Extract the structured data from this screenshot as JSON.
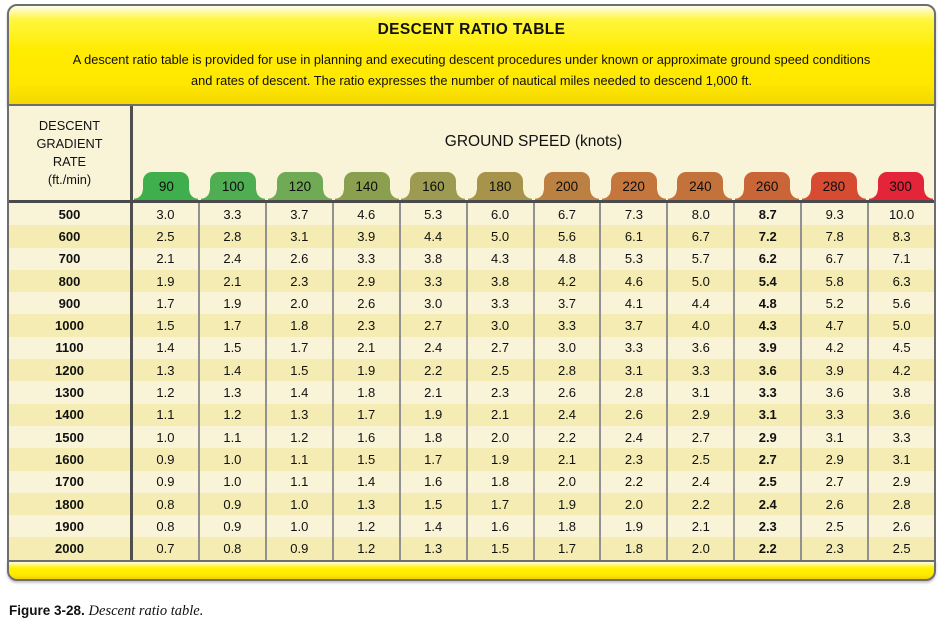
{
  "figure": {
    "header": {
      "title": "DESCENT RATIO TABLE",
      "description": "A descent ratio table is provided for use in planning and executing descent procedures under known or approximate ground speed conditions and rates of descent. The ratio expresses the number of nautical miles needed to descend 1,000 ft."
    },
    "table": {
      "row_header": "DESCENT\nGRADIENT\nRATE\n(ft./min)",
      "col_group_header": "GROUND SPEED (knots)",
      "highlight_speed": "260",
      "speeds": [
        {
          "label": "90",
          "color": "#3fae4c"
        },
        {
          "label": "100",
          "color": "#4fae52"
        },
        {
          "label": "120",
          "color": "#71aa55"
        },
        {
          "label": "140",
          "color": "#8aa04f"
        },
        {
          "label": "160",
          "color": "#9c9b51"
        },
        {
          "label": "180",
          "color": "#a7944a"
        },
        {
          "label": "200",
          "color": "#bb8042"
        },
        {
          "label": "220",
          "color": "#c4763d"
        },
        {
          "label": "240",
          "color": "#c4723c"
        },
        {
          "label": "260",
          "color": "#ca6537"
        },
        {
          "label": "280",
          "color": "#d84b33"
        },
        {
          "label": "300",
          "color": "#e42438"
        }
      ],
      "rows": [
        {
          "rate": "500",
          "values": [
            "3.0",
            "3.3",
            "3.7",
            "4.6",
            "5.3",
            "6.0",
            "6.7",
            "7.3",
            "8.0",
            "8.7",
            "9.3",
            "10.0"
          ]
        },
        {
          "rate": "600",
          "values": [
            "2.5",
            "2.8",
            "3.1",
            "3.9",
            "4.4",
            "5.0",
            "5.6",
            "6.1",
            "6.7",
            "7.2",
            "7.8",
            "8.3"
          ]
        },
        {
          "rate": "700",
          "values": [
            "2.1",
            "2.4",
            "2.6",
            "3.3",
            "3.8",
            "4.3",
            "4.8",
            "5.3",
            "5.7",
            "6.2",
            "6.7",
            "7.1"
          ]
        },
        {
          "rate": "800",
          "values": [
            "1.9",
            "2.1",
            "2.3",
            "2.9",
            "3.3",
            "3.8",
            "4.2",
            "4.6",
            "5.0",
            "5.4",
            "5.8",
            "6.3"
          ]
        },
        {
          "rate": "900",
          "values": [
            "1.7",
            "1.9",
            "2.0",
            "2.6",
            "3.0",
            "3.3",
            "3.7",
            "4.1",
            "4.4",
            "4.8",
            "5.2",
            "5.6"
          ]
        },
        {
          "rate": "1000",
          "values": [
            "1.5",
            "1.7",
            "1.8",
            "2.3",
            "2.7",
            "3.0",
            "3.3",
            "3.7",
            "4.0",
            "4.3",
            "4.7",
            "5.0"
          ]
        },
        {
          "rate": "1100",
          "values": [
            "1.4",
            "1.5",
            "1.7",
            "2.1",
            "2.4",
            "2.7",
            "3.0",
            "3.3",
            "3.6",
            "3.9",
            "4.2",
            "4.5"
          ]
        },
        {
          "rate": "1200",
          "values": [
            "1.3",
            "1.4",
            "1.5",
            "1.9",
            "2.2",
            "2.5",
            "2.8",
            "3.1",
            "3.3",
            "3.6",
            "3.9",
            "4.2"
          ]
        },
        {
          "rate": "1300",
          "values": [
            "1.2",
            "1.3",
            "1.4",
            "1.8",
            "2.1",
            "2.3",
            "2.6",
            "2.8",
            "3.1",
            "3.3",
            "3.6",
            "3.8"
          ]
        },
        {
          "rate": "1400",
          "values": [
            "1.1",
            "1.2",
            "1.3",
            "1.7",
            "1.9",
            "2.1",
            "2.4",
            "2.6",
            "2.9",
            "3.1",
            "3.3",
            "3.6"
          ]
        },
        {
          "rate": "1500",
          "values": [
            "1.0",
            "1.1",
            "1.2",
            "1.6",
            "1.8",
            "2.0",
            "2.2",
            "2.4",
            "2.7",
            "2.9",
            "3.1",
            "3.3"
          ]
        },
        {
          "rate": "1600",
          "values": [
            "0.9",
            "1.0",
            "1.1",
            "1.5",
            "1.7",
            "1.9",
            "2.1",
            "2.3",
            "2.5",
            "2.7",
            "2.9",
            "3.1"
          ]
        },
        {
          "rate": "1700",
          "values": [
            "0.9",
            "1.0",
            "1.1",
            "1.4",
            "1.6",
            "1.8",
            "2.0",
            "2.2",
            "2.4",
            "2.5",
            "2.7",
            "2.9"
          ]
        },
        {
          "rate": "1800",
          "values": [
            "0.8",
            "0.9",
            "1.0",
            "1.3",
            "1.5",
            "1.7",
            "1.9",
            "2.0",
            "2.2",
            "2.4",
            "2.6",
            "2.8"
          ]
        },
        {
          "rate": "1900",
          "values": [
            "0.8",
            "0.9",
            "1.0",
            "1.2",
            "1.4",
            "1.6",
            "1.8",
            "1.9",
            "2.1",
            "2.3",
            "2.5",
            "2.6"
          ]
        },
        {
          "rate": "2000",
          "values": [
            "0.7",
            "0.8",
            "0.9",
            "1.2",
            "1.3",
            "1.5",
            "1.7",
            "1.8",
            "2.0",
            "2.2",
            "2.3",
            "2.5"
          ]
        }
      ]
    },
    "caption": {
      "label": "Figure 3-28.",
      "text": "Descent ratio table."
    },
    "colors": {
      "header_yellow": "#ffe900",
      "band_cream": "#f9f3d8",
      "stripe_yellow": "#f4ecb2",
      "border_gray": "#6e6e6e",
      "grid_gray": "#919191",
      "heavy_line": "#4a4a4a"
    }
  }
}
